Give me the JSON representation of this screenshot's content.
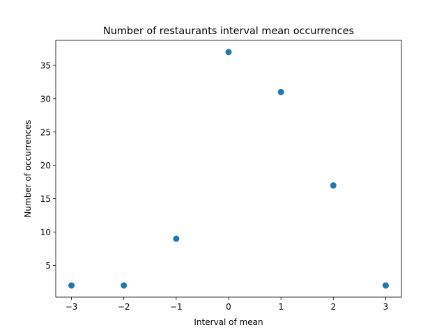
{
  "chart_data": {
    "type": "scatter",
    "title": "Number of restaurants interval mean occurrences",
    "xlabel": "Interval of mean",
    "ylabel": "Number of occurrences",
    "x": [
      -3,
      -2,
      -1,
      0,
      1,
      2,
      3
    ],
    "y": [
      2,
      2,
      9,
      37,
      31,
      17,
      2
    ],
    "xlim": [
      -3.3,
      3.3
    ],
    "ylim": [
      0.25,
      38.75
    ],
    "xticks": [
      -3,
      -2,
      -1,
      0,
      1,
      2,
      3
    ],
    "xtick_labels": [
      "−3",
      "−2",
      "−1",
      "0",
      "1",
      "2",
      "3"
    ],
    "yticks": [
      5,
      10,
      15,
      20,
      25,
      30,
      35
    ],
    "ytick_labels": [
      "5",
      "10",
      "15",
      "20",
      "25",
      "30",
      "35"
    ],
    "grid": false,
    "legend": "none",
    "marker_color": "#1f77b4"
  }
}
